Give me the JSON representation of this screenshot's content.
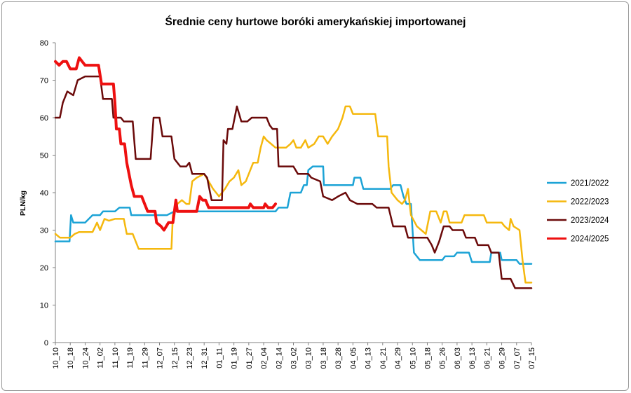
{
  "chart_data": {
    "type": "line",
    "title": "Średnie ceny hurtowe boróki amerykańskiej importowanej",
    "ylabel": "PLN/kg",
    "xlabel": "",
    "ylim": [
      0,
      80
    ],
    "yticks": [
      0,
      10,
      20,
      30,
      40,
      50,
      60,
      70,
      80
    ],
    "grid": false,
    "legend_position": "right",
    "categories": [
      "10_10",
      "10_18",
      "10_24",
      "11_02",
      "11_10",
      "11_19",
      "11_29",
      "12_07",
      "12_15",
      "12_23",
      "12_31",
      "01_11",
      "01_19",
      "01_27",
      "02_04",
      "02_14",
      "03_02",
      "03_10",
      "03_18",
      "03_28",
      "04_05",
      "04_13",
      "04_21",
      "04_29",
      "05_10",
      "05_18",
      "05_26",
      "06_03",
      "06_13",
      "06_21",
      "06_29",
      "07_07",
      "07_15"
    ],
    "series": [
      {
        "name": "2021/2022",
        "color": "#1CA3D6",
        "width": 2.5,
        "points": [
          [
            0,
            27
          ],
          [
            0.95,
            27
          ],
          [
            1.05,
            34
          ],
          [
            1.2,
            32
          ],
          [
            2,
            32
          ],
          [
            2.5,
            34
          ],
          [
            3.0,
            34
          ],
          [
            3.2,
            35
          ],
          [
            4.0,
            35
          ],
          [
            4.3,
            36
          ],
          [
            5.0,
            36
          ],
          [
            5.1,
            34
          ],
          [
            6.0,
            34
          ],
          [
            7.5,
            34
          ],
          [
            8.0,
            35
          ],
          [
            10.0,
            35
          ],
          [
            11.0,
            35
          ],
          [
            13.0,
            35
          ],
          [
            14.8,
            35
          ],
          [
            15.0,
            36
          ],
          [
            15.6,
            36
          ],
          [
            15.8,
            40
          ],
          [
            16.5,
            40
          ],
          [
            16.7,
            42
          ],
          [
            16.9,
            42
          ],
          [
            17.0,
            46
          ],
          [
            17.3,
            47
          ],
          [
            18.0,
            47
          ],
          [
            18.05,
            42
          ],
          [
            20.0,
            42
          ],
          [
            20.1,
            44
          ],
          [
            20.5,
            44
          ],
          [
            20.7,
            41
          ],
          [
            22.5,
            41
          ],
          [
            22.7,
            42
          ],
          [
            23.2,
            42
          ],
          [
            23.4,
            39
          ],
          [
            23.6,
            37
          ],
          [
            23.9,
            37
          ],
          [
            24.1,
            24
          ],
          [
            24.5,
            22
          ],
          [
            26.0,
            22
          ],
          [
            26.2,
            23
          ],
          [
            26.8,
            23
          ],
          [
            27.0,
            24
          ],
          [
            27.8,
            24
          ],
          [
            28.0,
            21.5
          ],
          [
            29.2,
            21.5
          ],
          [
            29.3,
            24
          ],
          [
            29.9,
            24
          ],
          [
            30.0,
            22
          ],
          [
            31.0,
            22
          ],
          [
            31.2,
            21
          ],
          [
            32.0,
            21
          ]
        ]
      },
      {
        "name": "2022/2023",
        "color": "#F5B80E",
        "width": 2.5,
        "points": [
          [
            0,
            29
          ],
          [
            0.3,
            28
          ],
          [
            1.0,
            28
          ],
          [
            1.3,
            29
          ],
          [
            1.6,
            29.5
          ],
          [
            2.5,
            29.5
          ],
          [
            2.8,
            32
          ],
          [
            3.0,
            30
          ],
          [
            3.3,
            33
          ],
          [
            3.6,
            32.5
          ],
          [
            4.0,
            33
          ],
          [
            4.6,
            33
          ],
          [
            4.8,
            29
          ],
          [
            5.2,
            29
          ],
          [
            5.6,
            25
          ],
          [
            7.8,
            25
          ],
          [
            7.9,
            34
          ],
          [
            8.2,
            37
          ],
          [
            8.5,
            38
          ],
          [
            8.8,
            37
          ],
          [
            9.0,
            37
          ],
          [
            9.2,
            43
          ],
          [
            9.5,
            44
          ],
          [
            10.0,
            45
          ],
          [
            10.3,
            43
          ],
          [
            10.6,
            41
          ],
          [
            11.0,
            39
          ],
          [
            11.4,
            41
          ],
          [
            11.7,
            43
          ],
          [
            12.0,
            44
          ],
          [
            12.3,
            46
          ],
          [
            12.5,
            42
          ],
          [
            12.8,
            43
          ],
          [
            13.0,
            45
          ],
          [
            13.3,
            48
          ],
          [
            13.6,
            48
          ],
          [
            13.8,
            52
          ],
          [
            14.0,
            55
          ],
          [
            14.2,
            54
          ],
          [
            14.5,
            53
          ],
          [
            14.8,
            52
          ],
          [
            15.0,
            52
          ],
          [
            15.5,
            52
          ],
          [
            15.8,
            53
          ],
          [
            16.0,
            54
          ],
          [
            16.2,
            52
          ],
          [
            16.5,
            52
          ],
          [
            16.8,
            54
          ],
          [
            17.0,
            52
          ],
          [
            17.4,
            53
          ],
          [
            17.7,
            55
          ],
          [
            18.0,
            55
          ],
          [
            18.3,
            53
          ],
          [
            18.6,
            55
          ],
          [
            19.0,
            57
          ],
          [
            19.3,
            60
          ],
          [
            19.5,
            63
          ],
          [
            19.8,
            63
          ],
          [
            20.0,
            61
          ],
          [
            21.0,
            61
          ],
          [
            21.5,
            61
          ],
          [
            21.7,
            55
          ],
          [
            22.3,
            55
          ],
          [
            22.4,
            47
          ],
          [
            22.6,
            40
          ],
          [
            23.0,
            38
          ],
          [
            23.3,
            37
          ],
          [
            23.5,
            38
          ],
          [
            23.7,
            41
          ],
          [
            23.9,
            34
          ],
          [
            24.3,
            31
          ],
          [
            24.6,
            30
          ],
          [
            24.9,
            29
          ],
          [
            25.2,
            35
          ],
          [
            25.6,
            35
          ],
          [
            25.9,
            32
          ],
          [
            26.1,
            35
          ],
          [
            26.3,
            35
          ],
          [
            26.5,
            32
          ],
          [
            27.3,
            32
          ],
          [
            27.5,
            34
          ],
          [
            28.8,
            34
          ],
          [
            29.0,
            32
          ],
          [
            30.0,
            32
          ],
          [
            30.2,
            31
          ],
          [
            30.5,
            30
          ],
          [
            30.6,
            33
          ],
          [
            30.8,
            31
          ],
          [
            31.2,
            30
          ],
          [
            31.4,
            22
          ],
          [
            31.6,
            16
          ],
          [
            32.0,
            16
          ]
        ]
      },
      {
        "name": "2023/2024",
        "color": "#6B0A0A",
        "width": 2.5,
        "points": [
          [
            0,
            60
          ],
          [
            0.3,
            60
          ],
          [
            0.5,
            64
          ],
          [
            0.8,
            67
          ],
          [
            1.2,
            66
          ],
          [
            1.5,
            70
          ],
          [
            2.0,
            71
          ],
          [
            3.0,
            71
          ],
          [
            3.2,
            65
          ],
          [
            3.8,
            65
          ],
          [
            3.9,
            60
          ],
          [
            4.4,
            60
          ],
          [
            4.6,
            59
          ],
          [
            5.2,
            59
          ],
          [
            5.4,
            49
          ],
          [
            6.4,
            49
          ],
          [
            6.6,
            60
          ],
          [
            7.0,
            60
          ],
          [
            7.2,
            55
          ],
          [
            7.8,
            55
          ],
          [
            8.0,
            49
          ],
          [
            8.4,
            47
          ],
          [
            8.8,
            47
          ],
          [
            9.0,
            48
          ],
          [
            9.2,
            45
          ],
          [
            10.0,
            45
          ],
          [
            10.2,
            44
          ],
          [
            10.5,
            38
          ],
          [
            11.2,
            38
          ],
          [
            11.3,
            54
          ],
          [
            11.5,
            53
          ],
          [
            11.6,
            57
          ],
          [
            11.9,
            57
          ],
          [
            12.2,
            63
          ],
          [
            12.5,
            59
          ],
          [
            12.9,
            59
          ],
          [
            13.2,
            60
          ],
          [
            14.2,
            60
          ],
          [
            14.4,
            58
          ],
          [
            14.6,
            57
          ],
          [
            14.9,
            57
          ],
          [
            15.0,
            47
          ],
          [
            16.0,
            47
          ],
          [
            16.3,
            45
          ],
          [
            17.0,
            45
          ],
          [
            17.2,
            44
          ],
          [
            17.8,
            43
          ],
          [
            18.0,
            39
          ],
          [
            18.6,
            38
          ],
          [
            19.0,
            39
          ],
          [
            19.5,
            40
          ],
          [
            19.8,
            38
          ],
          [
            20.3,
            37
          ],
          [
            21.3,
            37
          ],
          [
            21.6,
            36
          ],
          [
            22.4,
            36
          ],
          [
            22.7,
            31
          ],
          [
            23.2,
            31
          ],
          [
            23.5,
            31
          ],
          [
            23.7,
            28
          ],
          [
            25.0,
            28
          ],
          [
            25.3,
            26
          ],
          [
            25.5,
            24
          ],
          [
            25.8,
            27
          ],
          [
            26.1,
            31
          ],
          [
            26.5,
            31
          ],
          [
            26.7,
            30
          ],
          [
            27.4,
            30
          ],
          [
            27.6,
            28
          ],
          [
            28.2,
            28
          ],
          [
            28.4,
            26
          ],
          [
            29.1,
            26
          ],
          [
            29.3,
            24
          ],
          [
            29.8,
            24
          ],
          [
            30.0,
            17
          ],
          [
            30.6,
            17
          ],
          [
            30.9,
            14.5
          ],
          [
            32.0,
            14.5
          ]
        ]
      },
      {
        "name": "2024/2025",
        "color": "#EE1010",
        "width": 4,
        "points": [
          [
            0,
            75
          ],
          [
            0.25,
            74
          ],
          [
            0.5,
            75
          ],
          [
            0.75,
            75
          ],
          [
            1.0,
            73
          ],
          [
            1.4,
            73
          ],
          [
            1.6,
            76
          ],
          [
            1.8,
            75
          ],
          [
            2.0,
            74
          ],
          [
            2.9,
            74
          ],
          [
            3.1,
            69
          ],
          [
            3.9,
            69
          ],
          [
            4.0,
            64
          ],
          [
            4.1,
            57
          ],
          [
            4.3,
            57
          ],
          [
            4.4,
            53
          ],
          [
            4.65,
            53
          ],
          [
            4.8,
            48
          ],
          [
            5.1,
            42
          ],
          [
            5.3,
            39
          ],
          [
            5.8,
            39
          ],
          [
            6.0,
            37
          ],
          [
            6.2,
            35
          ],
          [
            6.7,
            35
          ],
          [
            6.8,
            32
          ],
          [
            7.1,
            31
          ],
          [
            7.3,
            30
          ],
          [
            7.6,
            32
          ],
          [
            7.9,
            32
          ],
          [
            8.1,
            38
          ],
          [
            8.2,
            35
          ],
          [
            9.5,
            35
          ],
          [
            9.7,
            39
          ],
          [
            9.9,
            38
          ],
          [
            10.1,
            38
          ],
          [
            10.3,
            36
          ],
          [
            13.0,
            36
          ],
          [
            13.1,
            37
          ],
          [
            13.3,
            36
          ],
          [
            14.0,
            36
          ],
          [
            14.1,
            37
          ],
          [
            14.3,
            36
          ],
          [
            14.6,
            36
          ],
          [
            14.8,
            37
          ]
        ]
      }
    ]
  }
}
